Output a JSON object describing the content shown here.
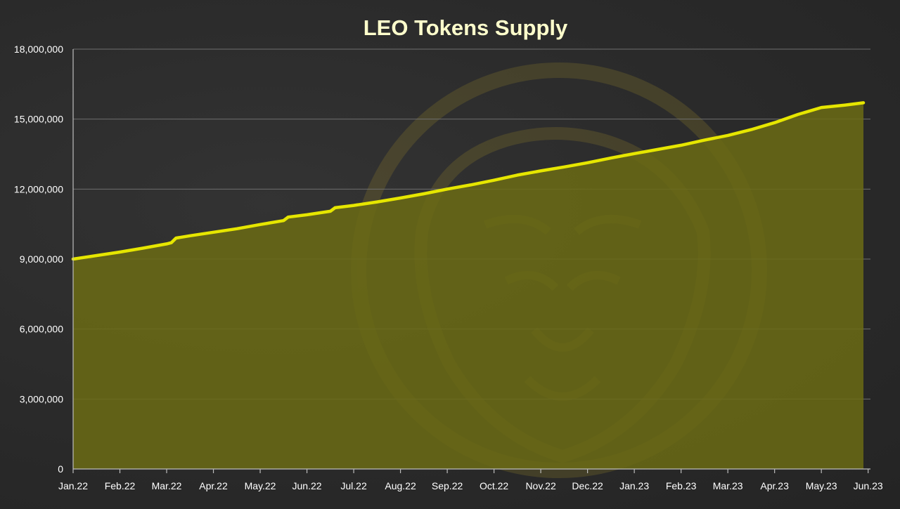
{
  "chart_data": {
    "type": "area",
    "title": "LEO Tokens Supply",
    "xlabel": "",
    "ylabel": "",
    "categories": [
      "Jan.22",
      "Feb.22",
      "Mar.22",
      "Apr.22",
      "May.22",
      "Jun.22",
      "Jul.22",
      "Aug.22",
      "Sep.22",
      "Oct.22",
      "Nov.22",
      "Dec.22",
      "Jan.23",
      "Feb.23",
      "Mar.23",
      "Apr.23",
      "May.23",
      "Jun.23"
    ],
    "y_tick_labels": [
      "0",
      "3,000,000",
      "6,000,000",
      "9,000,000",
      "12,000,000",
      "15,000,000",
      "18,000,000"
    ],
    "ylim": [
      0,
      18000000
    ],
    "grid": true,
    "legend": "none",
    "series": [
      {
        "x": [
          0,
          0.5,
          1,
          1.5,
          2,
          2.1,
          2.2,
          2.5,
          3,
          3.5,
          4,
          4.5,
          4.6,
          5,
          5.5,
          5.6,
          6,
          6.5,
          7,
          7.5,
          8,
          8.5,
          9,
          9.5,
          10,
          10.5,
          11,
          11.5,
          12,
          12.5,
          13,
          13.5,
          14,
          14.5,
          15,
          15.5,
          16,
          16.5,
          16.9
        ],
        "values": [
          9000000,
          9150000,
          9300000,
          9470000,
          9650000,
          9700000,
          9900000,
          10000000,
          10150000,
          10300000,
          10480000,
          10650000,
          10800000,
          10900000,
          11050000,
          11200000,
          11300000,
          11450000,
          11620000,
          11800000,
          12000000,
          12180000,
          12380000,
          12600000,
          12780000,
          12950000,
          13130000,
          13330000,
          13520000,
          13700000,
          13880000,
          14100000,
          14300000,
          14550000,
          14850000,
          15200000,
          15500000,
          15600000,
          15700000
        ]
      }
    ],
    "line_color": "#e6e600",
    "fill_color": "#6b6b14"
  }
}
